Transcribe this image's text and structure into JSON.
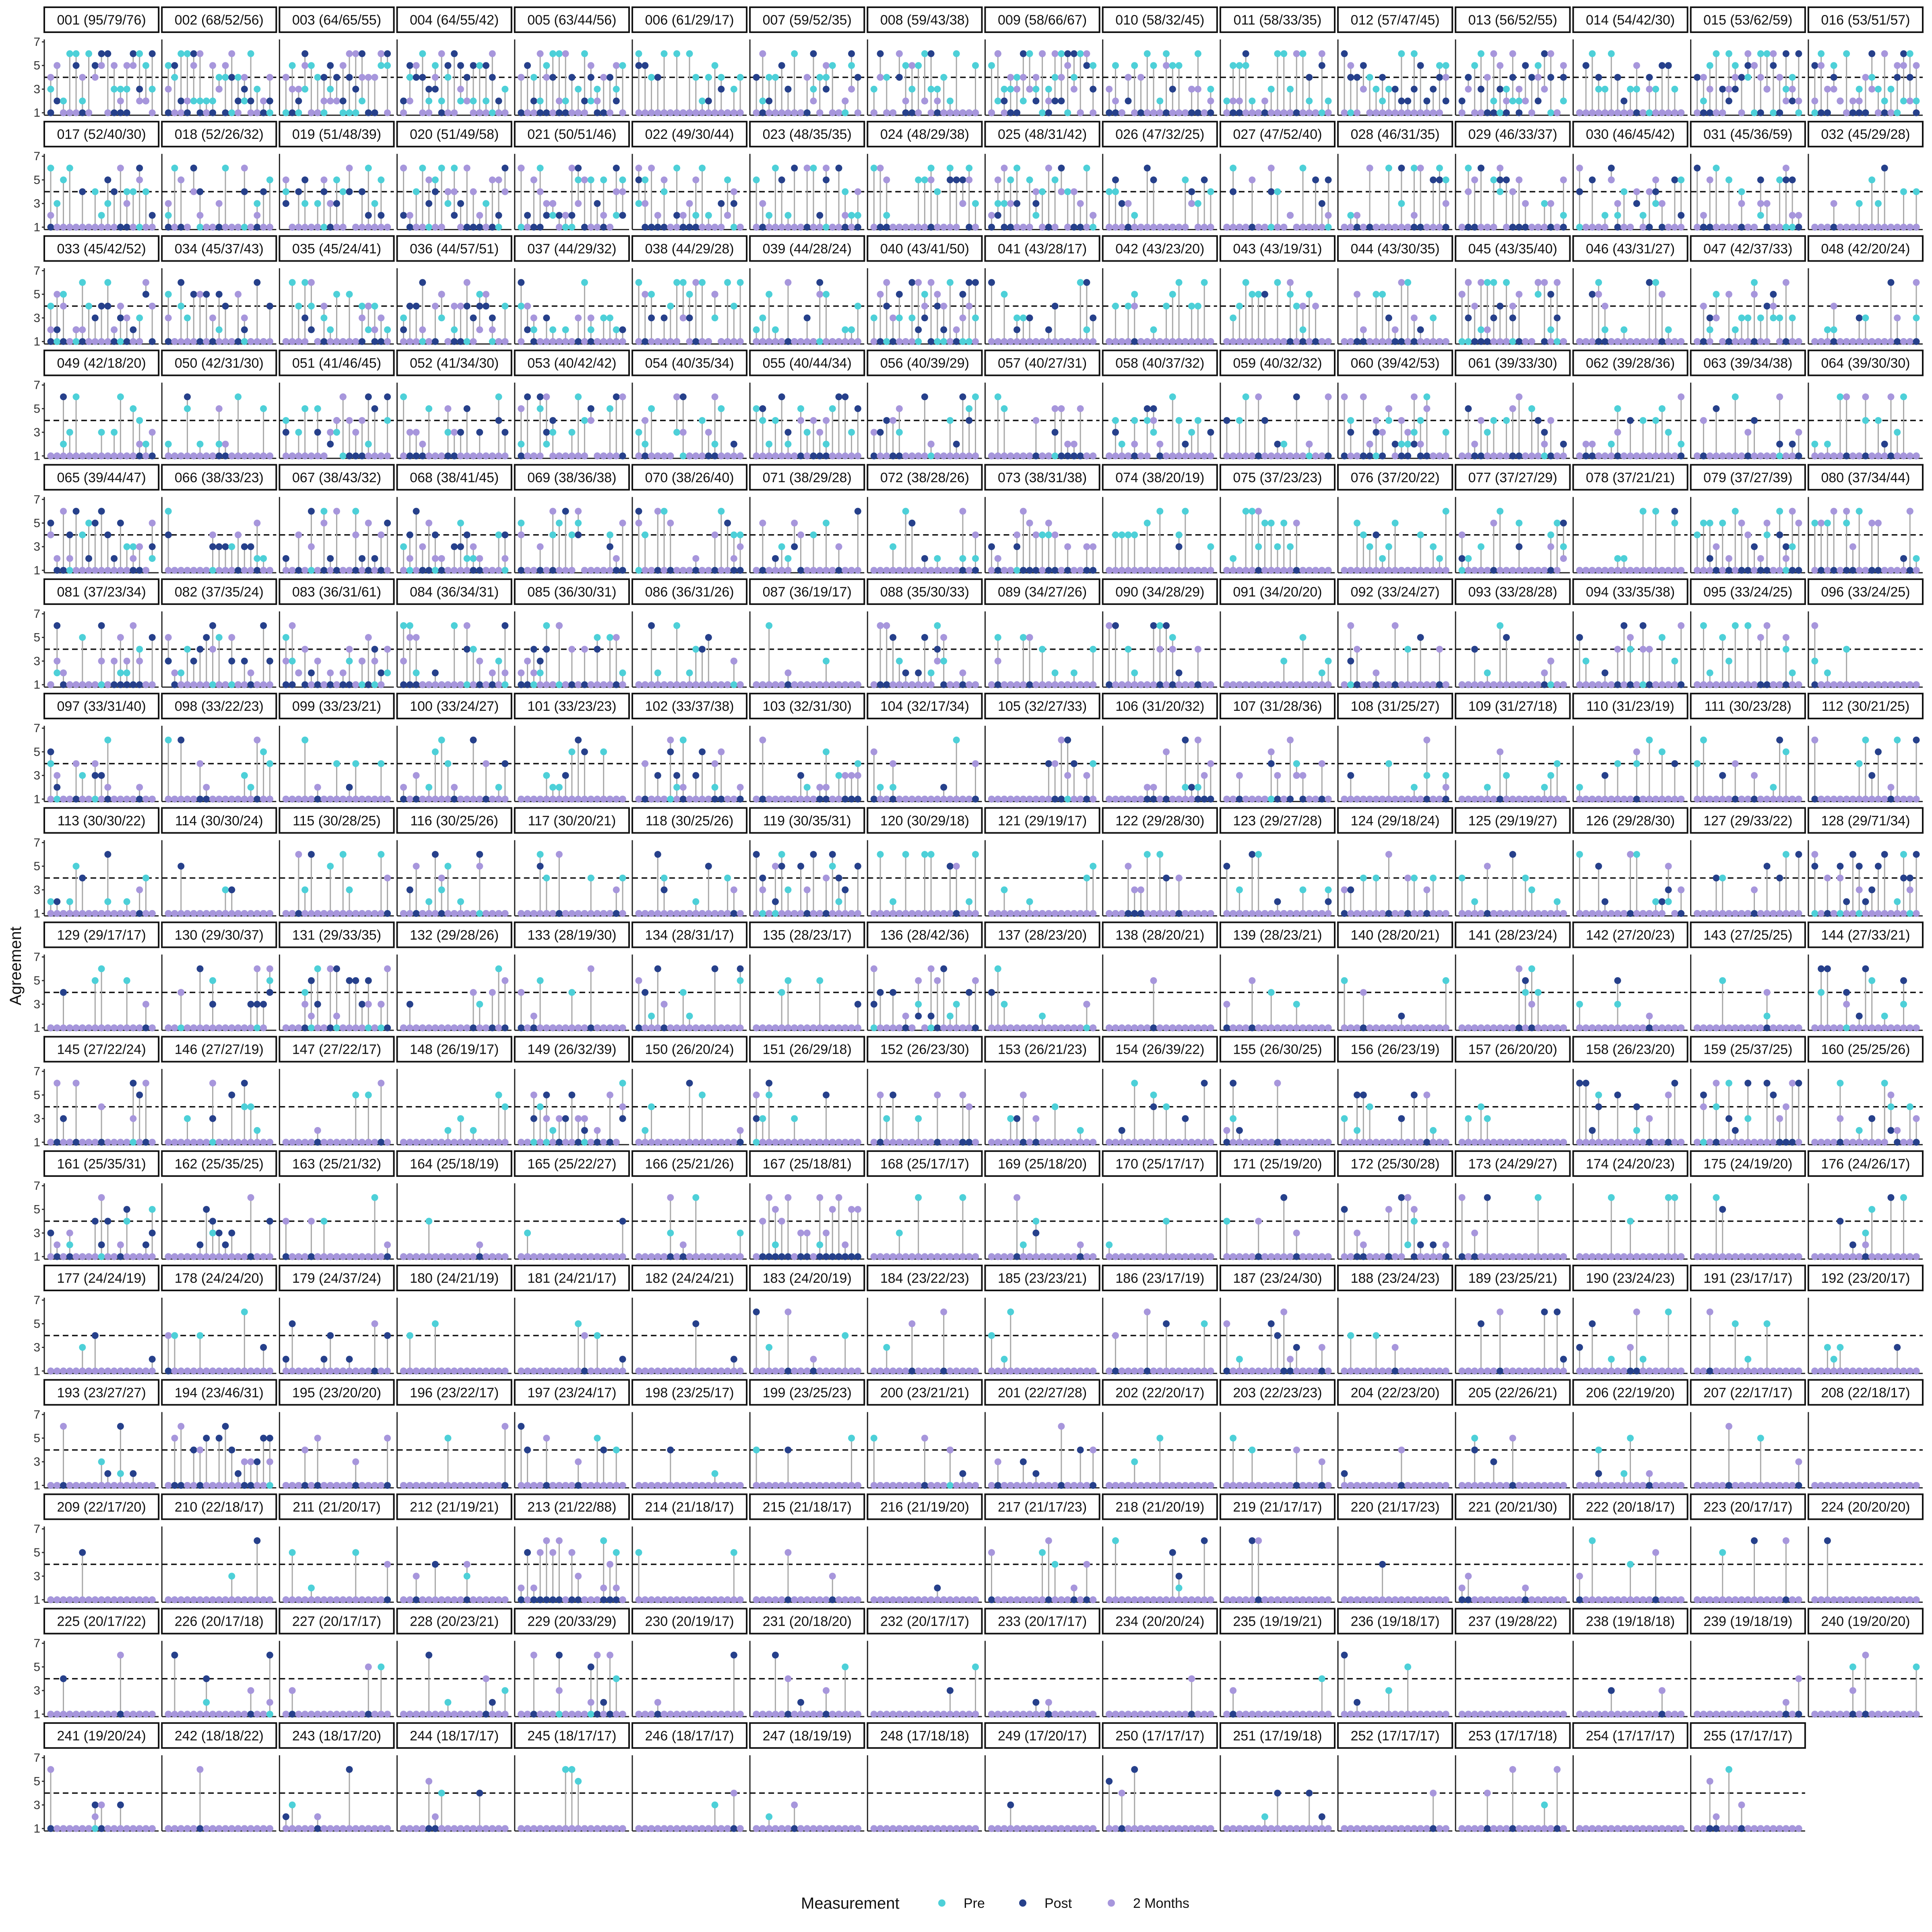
{
  "chart_data": {
    "type": "scatter",
    "subtype": "faceted-lollipop",
    "ylabel": "Agreement",
    "ylim": [
      1,
      7
    ],
    "y_ticks": [
      1,
      3,
      5,
      7
    ],
    "reference_line": 4,
    "items_per_panel": 17,
    "legend": {
      "title": "Measurement",
      "position": "bottom",
      "entries": [
        {
          "name": "Pre",
          "color": "#4dd0d8"
        },
        {
          "name": "Post",
          "color": "#26408b"
        },
        {
          "name": "2 Months",
          "color": "#a796dc"
        }
      ]
    },
    "segment_color": "#a8a8a8",
    "panel_labels": [
      "001 (95/79/76)",
      "002 (68/52/56)",
      "003 (64/65/55)",
      "004 (64/55/42)",
      "005 (63/44/56)",
      "006 (61/29/17)",
      "007 (59/52/35)",
      "008 (59/43/38)",
      "009 (58/66/67)",
      "010 (58/32/45)",
      "011 (58/33/35)",
      "012 (57/47/45)",
      "013 (56/52/55)",
      "014 (54/42/30)",
      "015 (53/62/59)",
      "016 (53/51/57)",
      "017 (52/40/30)",
      "018 (52/26/32)",
      "019 (51/48/39)",
      "020 (51/49/58)",
      "021 (50/51/46)",
      "022 (49/30/44)",
      "023 (48/35/35)",
      "024 (48/29/38)",
      "025 (48/31/42)",
      "026 (47/32/25)",
      "027 (47/52/40)",
      "028 (46/31/35)",
      "029 (46/33/37)",
      "030 (46/45/42)",
      "031 (45/36/59)",
      "032 (45/29/28)",
      "033 (45/42/52)",
      "034 (45/37/43)",
      "035 (45/24/41)",
      "036 (44/57/51)",
      "037 (44/29/32)",
      "038 (44/29/28)",
      "039 (44/28/24)",
      "040 (43/41/50)",
      "041 (43/28/17)",
      "042 (43/23/20)",
      "043 (43/19/31)",
      "044 (43/30/35)",
      "045 (43/35/40)",
      "046 (43/31/27)",
      "047 (42/37/33)",
      "048 (42/20/24)",
      "049 (42/18/20)",
      "050 (42/31/30)",
      "051 (41/46/45)",
      "052 (41/34/30)",
      "053 (40/42/42)",
      "054 (40/35/34)",
      "055 (40/44/34)",
      "056 (40/39/29)",
      "057 (40/27/31)",
      "058 (40/37/32)",
      "059 (40/32/32)",
      "060 (39/42/53)",
      "061 (39/33/30)",
      "062 (39/28/36)",
      "063 (39/34/38)",
      "064 (39/30/30)",
      "065 (39/44/47)",
      "066 (38/33/23)",
      "067 (38/43/32)",
      "068 (38/41/45)",
      "069 (38/36/38)",
      "070 (38/26/40)",
      "071 (38/29/28)",
      "072 (38/28/26)",
      "073 (38/31/38)",
      "074 (38/20/19)",
      "075 (37/23/23)",
      "076 (37/20/22)",
      "077 (37/27/29)",
      "078 (37/21/21)",
      "079 (37/27/39)",
      "080 (37/34/44)",
      "081 (37/23/34)",
      "082 (37/35/24)",
      "083 (36/31/61)",
      "084 (36/34/31)",
      "085 (36/30/31)",
      "086 (36/31/26)",
      "087 (36/19/17)",
      "088 (35/30/33)",
      "089 (34/27/26)",
      "090 (34/28/29)",
      "091 (34/20/20)",
      "092 (33/24/27)",
      "093 (33/28/28)",
      "094 (33/35/38)",
      "095 (33/24/25)",
      "096 (33/24/25)",
      "097 (33/31/40)",
      "098 (33/22/23)",
      "099 (33/23/21)",
      "100 (33/24/27)",
      "101 (33/23/23)",
      "102 (33/37/38)",
      "103 (32/31/30)",
      "104 (32/17/34)",
      "105 (32/27/33)",
      "106 (31/20/32)",
      "107 (31/28/36)",
      "108 (31/25/27)",
      "109 (31/27/18)",
      "110 (31/23/19)",
      "111 (30/23/28)",
      "112 (30/21/25)",
      "113 (30/30/22)",
      "114 (30/30/24)",
      "115 (30/28/25)",
      "116 (30/25/26)",
      "117 (30/20/21)",
      "118 (30/25/26)",
      "119 (30/35/31)",
      "120 (30/29/18)",
      "121 (29/19/17)",
      "122 (29/28/30)",
      "123 (29/27/28)",
      "124 (29/18/24)",
      "125 (29/19/27)",
      "126 (29/28/30)",
      "127 (29/33/22)",
      "128 (29/71/34)",
      "129 (29/17/17)",
      "130 (29/30/37)",
      "131 (29/33/35)",
      "132 (29/28/26)",
      "133 (28/19/30)",
      "134 (28/31/17)",
      "135 (28/23/17)",
      "136 (28/42/36)",
      "137 (28/23/20)",
      "138 (28/20/21)",
      "139 (28/23/21)",
      "140 (28/20/21)",
      "141 (28/23/24)",
      "142 (27/20/23)",
      "143 (27/25/25)",
      "144 (27/33/21)",
      "145 (27/22/24)",
      "146 (27/27/19)",
      "147 (27/22/17)",
      "148 (26/19/17)",
      "149 (26/32/39)",
      "150 (26/20/24)",
      "151 (26/29/18)",
      "152 (26/23/30)",
      "153 (26/21/23)",
      "154 (26/39/22)",
      "155 (26/30/25)",
      "156 (26/23/19)",
      "157 (26/20/20)",
      "158 (26/23/20)",
      "159 (25/37/25)",
      "160 (25/25/26)",
      "161 (25/35/31)",
      "162 (25/35/25)",
      "163 (25/21/32)",
      "164 (25/18/19)",
      "165 (25/22/27)",
      "166 (25/21/26)",
      "167 (25/18/81)",
      "168 (25/17/17)",
      "169 (25/18/20)",
      "170 (25/17/17)",
      "171 (25/19/20)",
      "172 (25/30/28)",
      "173 (24/29/27)",
      "174 (24/20/23)",
      "175 (24/19/20)",
      "176 (24/26/17)",
      "177 (24/24/19)",
      "178 (24/24/20)",
      "179 (24/37/24)",
      "180 (24/21/19)",
      "181 (24/21/17)",
      "182 (24/24/21)",
      "183 (24/20/19)",
      "184 (23/22/23)",
      "185 (23/23/21)",
      "186 (23/17/19)",
      "187 (23/24/30)",
      "188 (23/24/23)",
      "189 (23/25/21)",
      "190 (23/24/23)",
      "191 (23/17/17)",
      "192 (23/20/17)",
      "193 (23/27/27)",
      "194 (23/46/31)",
      "195 (23/20/20)",
      "196 (23/22/17)",
      "197 (23/24/17)",
      "198 (23/25/17)",
      "199 (23/25/23)",
      "200 (23/21/21)",
      "201 (22/27/28)",
      "202 (22/20/17)",
      "203 (22/23/23)",
      "204 (22/23/20)",
      "205 (22/26/21)",
      "206 (22/19/20)",
      "207 (22/17/17)",
      "208 (22/18/17)",
      "209 (22/17/20)",
      "210 (22/18/17)",
      "211 (21/20/17)",
      "212 (21/19/21)",
      "213 (21/22/88)",
      "214 (21/18/17)",
      "215 (21/18/17)",
      "216 (21/19/20)",
      "217 (21/17/23)",
      "218 (21/20/19)",
      "219 (21/17/17)",
      "220 (21/17/23)",
      "221 (20/21/30)",
      "222 (20/18/17)",
      "223 (20/17/17)",
      "224 (20/20/20)",
      "225 (20/17/22)",
      "226 (20/17/18)",
      "227 (20/17/17)",
      "228 (20/23/21)",
      "229 (20/33/29)",
      "230 (20/19/17)",
      "231 (20/18/20)",
      "232 (20/17/17)",
      "233 (20/17/17)",
      "234 (20/20/24)",
      "235 (19/19/21)",
      "236 (19/18/17)",
      "237 (19/28/22)",
      "238 (19/18/18)",
      "239 (19/18/19)",
      "240 (19/20/20)",
      "241 (19/20/24)",
      "242 (18/18/22)",
      "243 (18/17/20)",
      "244 (18/17/17)",
      "245 (18/17/17)",
      "246 (18/17/17)",
      "247 (18/19/19)",
      "248 (17/18/18)",
      "249 (17/20/17)",
      "250 (17/17/17)",
      "251 (17/19/18)",
      "252 (17/17/17)",
      "253 (17/17/18)",
      "254 (17/17/17)",
      "255 (17/17/17)"
    ]
  }
}
